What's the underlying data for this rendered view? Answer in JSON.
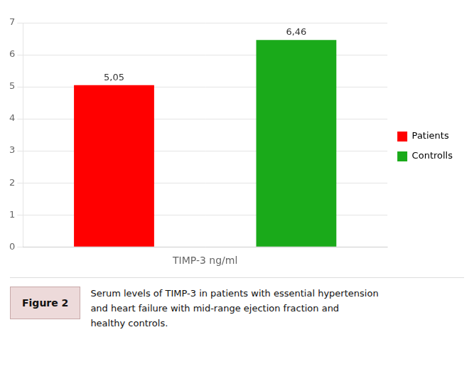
{
  "chart_data": {
    "type": "bar",
    "categories": [
      "Patients",
      "Controlls"
    ],
    "values": [
      5.05,
      6.46
    ],
    "value_labels": [
      "5,05",
      "6,46"
    ],
    "colors": [
      "#ff0000",
      "#1aaa1a"
    ],
    "data_labels": true,
    "x_label": "TIMP-3 ng/ml",
    "ylim": [
      0,
      7
    ],
    "yticks": [
      0,
      1,
      2,
      3,
      4,
      5,
      6,
      7
    ],
    "grid": true,
    "legend": "right",
    "tick_labels": "y",
    "annotations": [
      "Figure 2",
      "Serum levels of TIMP-3 in patients with essential hypertension",
      "and heart failure with mid-range ejection fraction and",
      "healthy controls."
    ]
  }
}
